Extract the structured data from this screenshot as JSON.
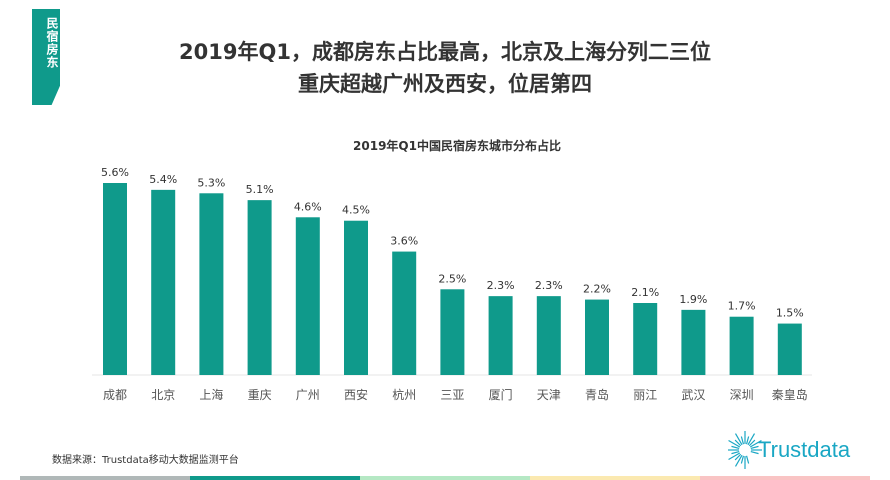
{
  "tag": "民宿房东",
  "title_line1": "2019年Q1，成都房东占比最高，北京及上海分列二三位",
  "title_line2": "重庆超越广州及西安，位居第四",
  "source": "数据来源：Trustdata移动大数据监测平台",
  "logo_text": "Trustdata",
  "colors": {
    "bar": "#0f9a8b",
    "strip": [
      "#b0b8b8",
      "#0f9a8b",
      "#b5e8c4",
      "#fbe9b0",
      "#f9c4c4"
    ]
  },
  "chart_data": {
    "type": "bar",
    "title": "2019年Q1中国民宿房东城市分布占比",
    "categories": [
      "成都",
      "北京",
      "上海",
      "重庆",
      "广州",
      "西安",
      "杭州",
      "三亚",
      "厦门",
      "天津",
      "青岛",
      "丽江",
      "武汉",
      "深圳",
      "秦皇岛"
    ],
    "values": [
      5.6,
      5.4,
      5.3,
      5.1,
      4.6,
      4.5,
      3.6,
      2.5,
      2.3,
      2.3,
      2.2,
      2.1,
      1.9,
      1.7,
      1.5
    ],
    "labels": [
      "5.6%",
      "5.4%",
      "5.3%",
      "5.1%",
      "4.6%",
      "4.5%",
      "3.6%",
      "2.5%",
      "2.3%",
      "2.3%",
      "2.2%",
      "2.1%",
      "1.9%",
      "1.7%",
      "1.5%"
    ],
    "unit": "%",
    "ylim": [
      0,
      5.6
    ],
    "grid": false
  }
}
